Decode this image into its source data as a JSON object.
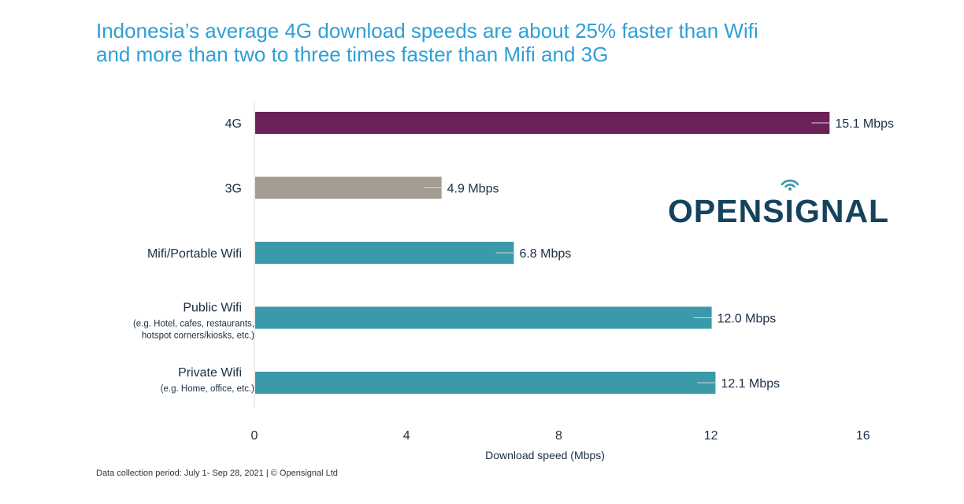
{
  "title": {
    "line1": "Indonesia’s average 4G download speeds are about 25% faster than Wifi",
    "line2": "and more than two to three times faster than Mifi and 3G"
  },
  "footnote": "Data collection period: July 1- Sep 28, 2021 | © Opensignal Ltd",
  "logo": {
    "part1": "OPENS",
    "i": "I",
    "part2": "GNAL"
  },
  "colors": {
    "title": "#2f9fd6",
    "bar_4g": "#6b2258",
    "bar_3g": "#a39c92",
    "bar_wifi": "#3a9aa9",
    "logo": "#15435e"
  },
  "chart_data": {
    "type": "bar",
    "orientation": "horizontal",
    "categories": [
      {
        "label": "4G",
        "sublabel": [],
        "value": 15.1,
        "value_label": "15.1 Mbps",
        "color": "#6b2258"
      },
      {
        "label": "3G",
        "sublabel": [],
        "value": 4.9,
        "value_label": "4.9 Mbps",
        "color": "#a39c92"
      },
      {
        "label": "Mifi/Portable Wifi",
        "sublabel": [],
        "value": 6.8,
        "value_label": "6.8 Mbps",
        "color": "#3a9aa9"
      },
      {
        "label": "Public Wifi",
        "sublabel": [
          "(e.g. Hotel, cafes, restaurants,",
          "hotspot corners/kiosks, etc.)"
        ],
        "value": 12.0,
        "value_label": "12.0 Mbps",
        "color": "#3a9aa9"
      },
      {
        "label": "Private Wifi",
        "sublabel": [
          "(e.g. Home, office, etc.)"
        ],
        "value": 12.1,
        "value_label": "12.1 Mbps",
        "color": "#3a9aa9"
      }
    ],
    "xlabel": "Download speed (Mbps)",
    "xlim": [
      0,
      16
    ],
    "xticks": [
      0,
      4,
      8,
      12,
      16
    ],
    "grid": false
  }
}
